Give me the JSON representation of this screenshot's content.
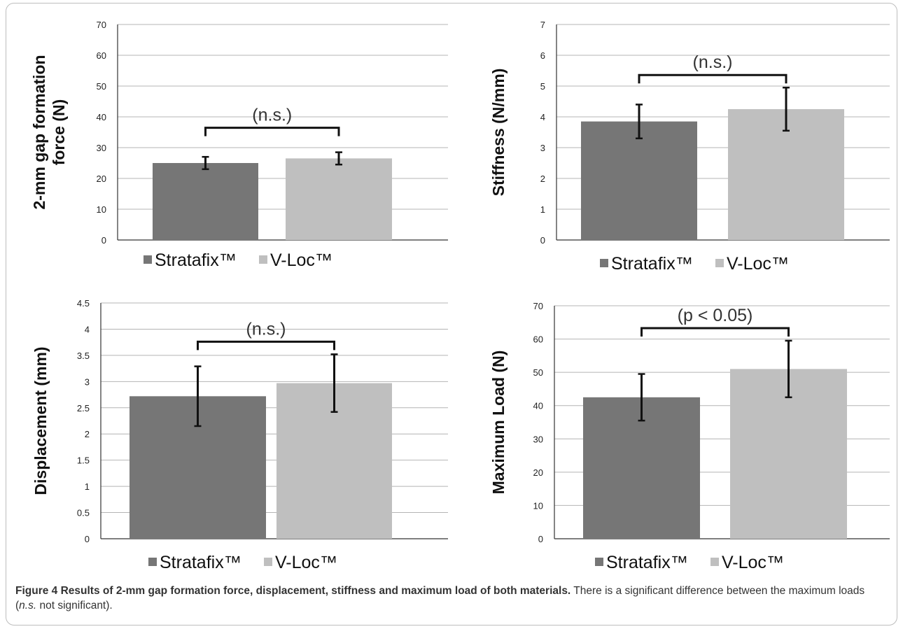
{
  "colors": {
    "stratafix": "#767676",
    "vloc": "#bfbfbf",
    "grid": "#b4b4b4",
    "axis": "#333333",
    "errorbar": "#111111"
  },
  "caption": {
    "label": "Figure 4 Results of 2-mm gap formation force, displacement, stiffness and maximum load of both materials.",
    "text_before": " There is a significant difference between the maximum loads (",
    "italic": "n.s.",
    "text_after": " not significant)."
  },
  "chart_data": [
    {
      "type": "bar",
      "ylabel": "2-mm gap formation force (N)",
      "categories": [
        "Stratafix™",
        "V-Loc™"
      ],
      "values": [
        25,
        26.5
      ],
      "errors": [
        2,
        2
      ],
      "ylim": [
        0,
        70
      ],
      "yticks": [
        "0",
        "10",
        "20",
        "30",
        "40",
        "50",
        "60",
        "70"
      ],
      "annotation": "(n.s.)",
      "legend": [
        "Stratafix™",
        "V-Loc™"
      ],
      "grid": true
    },
    {
      "type": "bar",
      "ylabel": "Stiffness (N/mm)",
      "categories": [
        "Stratafix™",
        "V-Loc™"
      ],
      "values": [
        3.85,
        4.25
      ],
      "errors": [
        0.55,
        0.7
      ],
      "ylim": [
        0,
        7
      ],
      "yticks": [
        "0",
        "1",
        "2",
        "3",
        "4",
        "5",
        "6",
        "7"
      ],
      "annotation": "(n.s.)",
      "legend": [
        "Stratafix™",
        "V-Loc™"
      ],
      "grid": true
    },
    {
      "type": "bar",
      "ylabel": "Displacement (mm)",
      "categories": [
        "Stratafix™",
        "V-Loc™"
      ],
      "values": [
        2.72,
        2.97
      ],
      "errors": [
        0.57,
        0.55
      ],
      "ylim": [
        0,
        4.5
      ],
      "yticks": [
        "0",
        "0.5",
        "1",
        "1.5",
        "2",
        "2.5",
        "3",
        "3.5",
        "4",
        "4.5"
      ],
      "annotation": "(n.s.)",
      "legend": [
        "Stratafix™",
        "V-Loc™"
      ],
      "grid": true
    },
    {
      "type": "bar",
      "ylabel": "Maximum Load (N)",
      "categories": [
        "Stratafix™",
        "V-Loc™"
      ],
      "values": [
        42.5,
        51
      ],
      "errors": [
        7,
        8.5
      ],
      "ylim": [
        0,
        70
      ],
      "yticks": [
        "0",
        "10",
        "20",
        "30",
        "40",
        "50",
        "60",
        "70"
      ],
      "annotation": "(p < 0.05)",
      "legend": [
        "Stratafix™",
        "V-Loc™"
      ],
      "grid": true
    }
  ]
}
